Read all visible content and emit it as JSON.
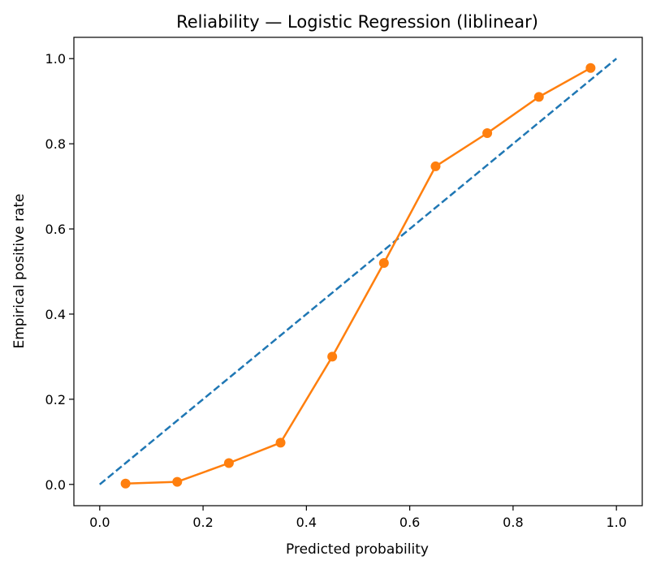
{
  "chart_data": {
    "type": "line",
    "title": "Reliability — Logistic Regression (liblinear)",
    "xlabel": "Predicted probability",
    "ylabel": "Empirical positive rate",
    "xlim": [
      -0.05,
      1.05
    ],
    "ylim": [
      -0.05,
      1.05
    ],
    "x_ticks": [
      0.0,
      0.2,
      0.4,
      0.6,
      0.8,
      1.0
    ],
    "y_ticks": [
      0.0,
      0.2,
      0.4,
      0.6,
      0.8,
      1.0
    ],
    "x_tick_labels": [
      "0.0",
      "0.2",
      "0.4",
      "0.6",
      "0.8",
      "1.0"
    ],
    "y_tick_labels": [
      "0.0",
      "0.2",
      "0.4",
      "0.6",
      "0.8",
      "1.0"
    ],
    "grid": false,
    "legend": "none",
    "series": [
      {
        "style": "dashed",
        "color": "#1f77b4",
        "x": [
          0.0,
          1.0
        ],
        "y": [
          0.0,
          1.0
        ]
      },
      {
        "style": "line-markers",
        "color": "#ff7f0e",
        "x": [
          0.05,
          0.15,
          0.25,
          0.35,
          0.45,
          0.55,
          0.65,
          0.75,
          0.85,
          0.95
        ],
        "y": [
          0.002,
          0.006,
          0.05,
          0.098,
          0.3,
          0.52,
          0.747,
          0.825,
          0.91,
          0.978
        ]
      }
    ]
  }
}
